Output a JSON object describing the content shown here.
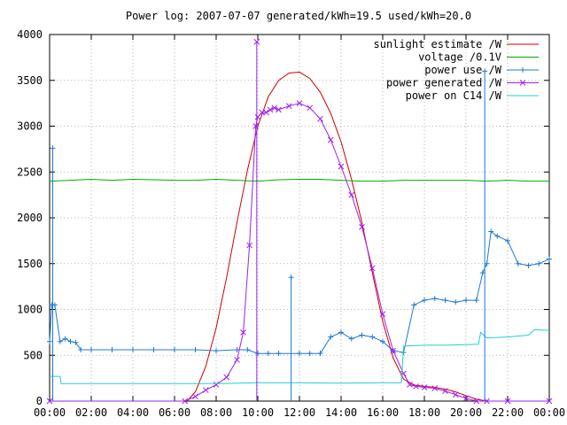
{
  "chart_data": {
    "type": "line",
    "title": "Power log: 2007-07-07 generated/kWh=19.5 used/kWh=20.0",
    "xlabel": "",
    "ylabel": "",
    "x_ticks": [
      "00:00",
      "02:00",
      "04:00",
      "06:00",
      "08:00",
      "10:00",
      "12:00",
      "14:00",
      "16:00",
      "18:00",
      "20:00",
      "22:00",
      "00:00"
    ],
    "y_ticks": [
      "0",
      "500",
      "1000",
      "1500",
      "2000",
      "2500",
      "3000",
      "3500",
      "4000"
    ],
    "xlim": [
      0,
      24
    ],
    "ylim": [
      0,
      4000
    ],
    "grid": true,
    "legend_position": "top-right",
    "series": [
      {
        "name": "sunlight estimate /W",
        "color": "#cc0000",
        "marker": "none",
        "x": [
          6.6,
          7.0,
          7.5,
          8.0,
          8.5,
          9.0,
          9.5,
          10.0,
          10.5,
          11.0,
          11.5,
          12.0,
          12.5,
          13.0,
          13.5,
          14.0,
          14.5,
          15.0,
          15.5,
          16.0,
          16.5,
          17.0,
          17.5,
          18.0,
          18.5,
          19.0,
          19.5,
          20.0,
          20.5,
          21.0
        ],
        "y": [
          0,
          100,
          380,
          800,
          1350,
          1950,
          2520,
          3000,
          3320,
          3500,
          3580,
          3590,
          3520,
          3370,
          3140,
          2830,
          2420,
          1950,
          1400,
          870,
          470,
          240,
          175,
          160,
          150,
          130,
          100,
          60,
          20,
          0
        ]
      },
      {
        "name": "voltage /0.1V",
        "color": "#00aa00",
        "marker": "none",
        "x": [
          0,
          1,
          2,
          3,
          4,
          5,
          6,
          7,
          8,
          9,
          10,
          11,
          12,
          13,
          14,
          15,
          16,
          17,
          18,
          19,
          20,
          21,
          22,
          23,
          24
        ],
        "y": [
          2400,
          2410,
          2420,
          2410,
          2420,
          2415,
          2410,
          2410,
          2420,
          2410,
          2400,
          2415,
          2420,
          2420,
          2410,
          2400,
          2400,
          2410,
          2410,
          2410,
          2410,
          2400,
          2410,
          2400,
          2400
        ]
      },
      {
        "name": "power use /W",
        "color": "#1e78d6",
        "marker": "plus",
        "x": [
          0,
          0.1,
          0.25,
          0.5,
          0.75,
          1.0,
          1.25,
          1.5,
          2,
          3,
          4,
          5,
          6,
          7,
          8,
          9,
          9.5,
          10,
          10.5,
          11,
          12,
          12.5,
          13,
          13.5,
          14,
          14.5,
          15,
          15.5,
          16,
          16.5,
          17,
          17.5,
          18,
          18.5,
          19,
          19.5,
          20,
          20.5,
          20.8,
          21,
          21.2,
          21.5,
          22,
          22.5,
          23,
          23.5,
          24
        ],
        "y": [
          650,
          1050,
          1050,
          650,
          680,
          650,
          640,
          560,
          560,
          560,
          560,
          560,
          560,
          560,
          550,
          560,
          560,
          520,
          520,
          520,
          520,
          520,
          520,
          700,
          750,
          680,
          720,
          700,
          650,
          550,
          530,
          1050,
          1100,
          1120,
          1100,
          1080,
          1100,
          1100,
          1400,
          1500,
          1850,
          1800,
          1750,
          1500,
          1480,
          1500,
          1550
        ]
      },
      {
        "name": "power generated /W",
        "color": "#a020f0",
        "marker": "cross",
        "x": [
          0,
          6.5,
          7.0,
          7.5,
          8.0,
          8.5,
          9.0,
          9.3,
          9.6,
          9.9,
          10.0,
          10.2,
          10.4,
          10.6,
          10.8,
          11.0,
          11.5,
          12.0,
          12.5,
          13.0,
          13.5,
          14.0,
          14.5,
          15.0,
          15.5,
          16.0,
          16.5,
          17.0,
          17.3,
          17.6,
          18.0,
          18.5,
          19.0,
          19.5,
          20.0,
          20.5,
          21.0,
          22.0,
          24.0
        ],
        "y": [
          0,
          0,
          50,
          120,
          180,
          260,
          450,
          750,
          1700,
          3000,
          3100,
          3150,
          3150,
          3180,
          3200,
          3180,
          3220,
          3250,
          3200,
          3080,
          2850,
          2560,
          2250,
          1900,
          1450,
          950,
          550,
          300,
          180,
          160,
          150,
          140,
          110,
          70,
          30,
          0,
          0,
          0,
          0
        ]
      },
      {
        "name": "power on C14 /W",
        "color": "#22cfcf",
        "marker": "none",
        "x": [
          0,
          0.5,
          0.55,
          2,
          4,
          6,
          8,
          10,
          12,
          14,
          16,
          16.9,
          17.0,
          18,
          19,
          20,
          20.6,
          20.7,
          21,
          22,
          23,
          23.3,
          24
        ],
        "y": [
          270,
          270,
          190,
          190,
          190,
          190,
          190,
          200,
          200,
          195,
          200,
          200,
          600,
          610,
          610,
          615,
          620,
          750,
          690,
          700,
          720,
          780,
          770
        ]
      }
    ],
    "spikes": [
      {
        "series": "power use /W",
        "x": 0.15,
        "y": 2760
      },
      {
        "series": "power use /W",
        "x": 11.6,
        "y": 1350
      },
      {
        "series": "power use /W",
        "x": 20.9,
        "y": 3600
      },
      {
        "series": "power generated /W",
        "x": 9.95,
        "y": 3920
      }
    ]
  }
}
